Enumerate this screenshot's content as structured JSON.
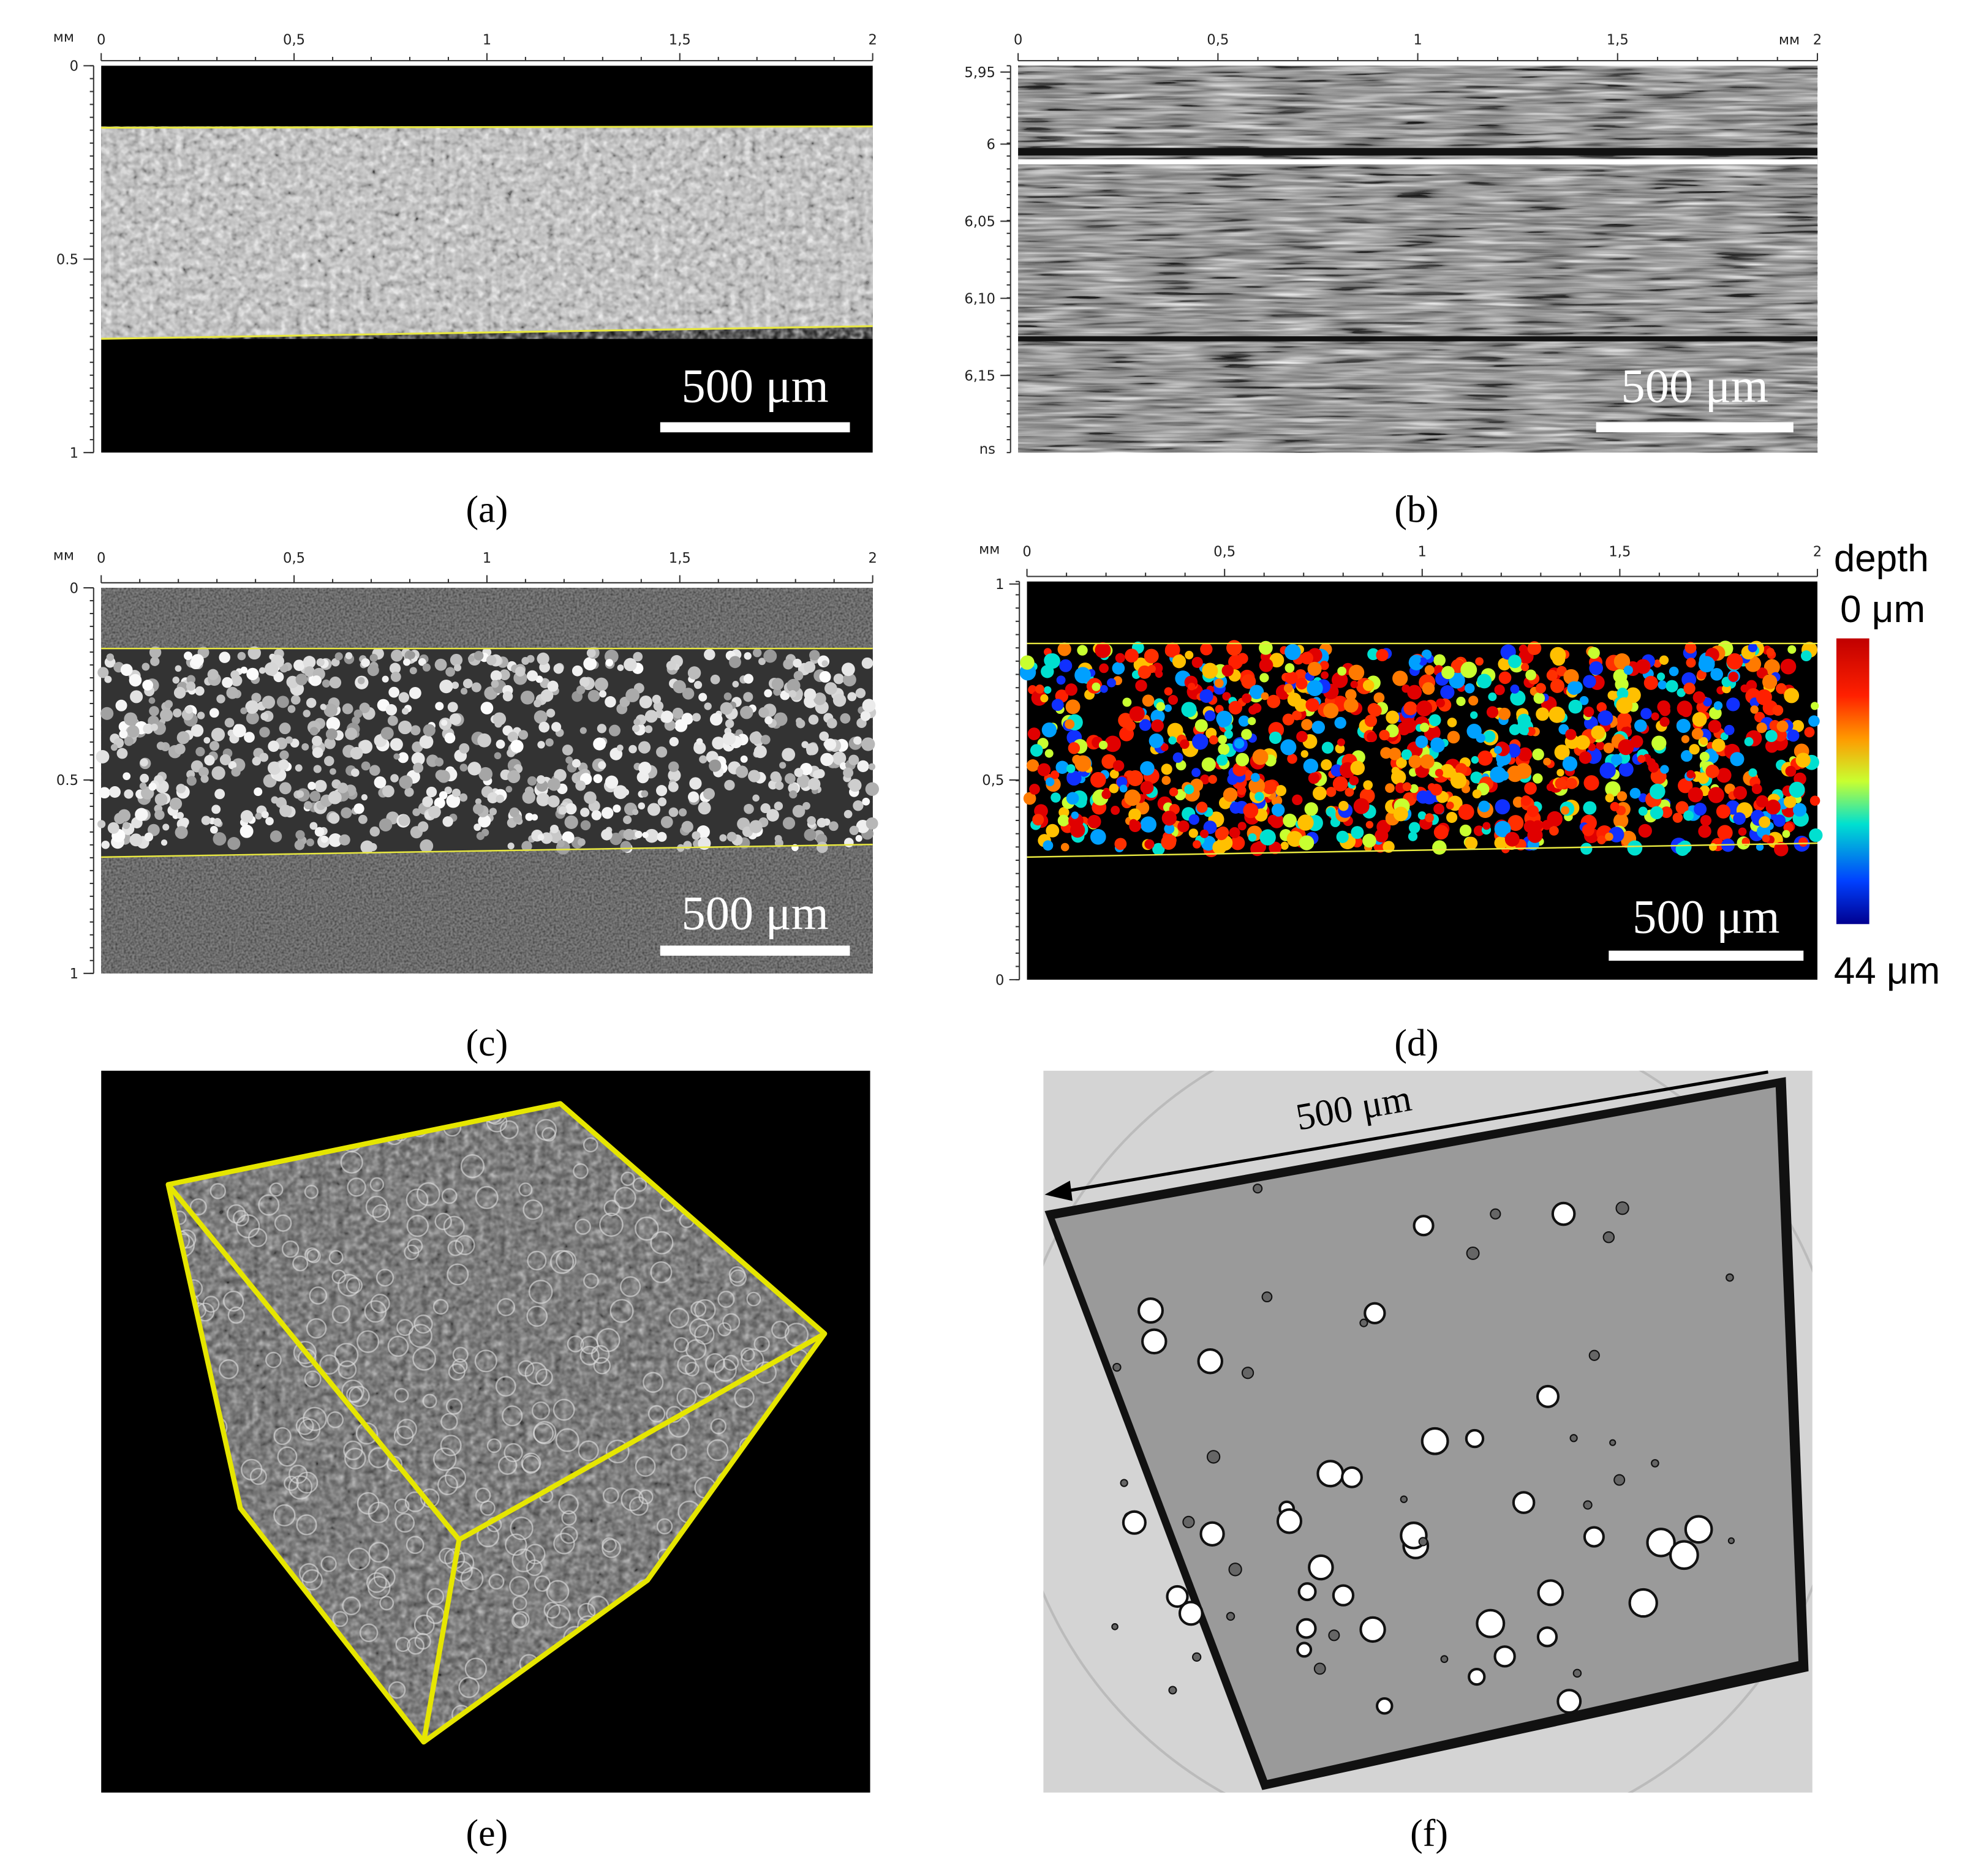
{
  "panels": [
    {
      "label": "(a)",
      "unit": "мм",
      "x_ticks": [
        "0",
        "0,5",
        "1",
        "1,5",
        "2"
      ],
      "y_ticks": [
        "0",
        "0.5",
        "1"
      ],
      "scale_bar": "500 μm"
    },
    {
      "label": "(b)",
      "unit": "мм",
      "x_ticks": [
        "0",
        "0,5",
        "1",
        "1,5",
        "2"
      ],
      "y_ticks": [
        "5,95",
        "6",
        "6,05",
        "6,10",
        "6,15"
      ],
      "y_unit": "ns",
      "scale_bar": "500 μm"
    },
    {
      "label": "(c)",
      "unit": "мм",
      "x_ticks": [
        "0",
        "0,5",
        "1",
        "1,5",
        "2"
      ],
      "y_ticks": [
        "0",
        "0.5",
        "1"
      ],
      "scale_bar": "500 μm"
    },
    {
      "label": "(d)",
      "unit": "мм",
      "x_ticks": [
        "0",
        "0,5",
        "1",
        "1,5",
        "2"
      ],
      "y_ticks": [
        "1",
        "0,5",
        "0"
      ],
      "scale_bar": "500 μm",
      "colorbar": {
        "title": "depth",
        "top": "0 μm",
        "bottom": "44 μm"
      }
    },
    {
      "label": "(e)"
    },
    {
      "label": "(f)",
      "scale_bar": "500 μm"
    }
  ]
}
